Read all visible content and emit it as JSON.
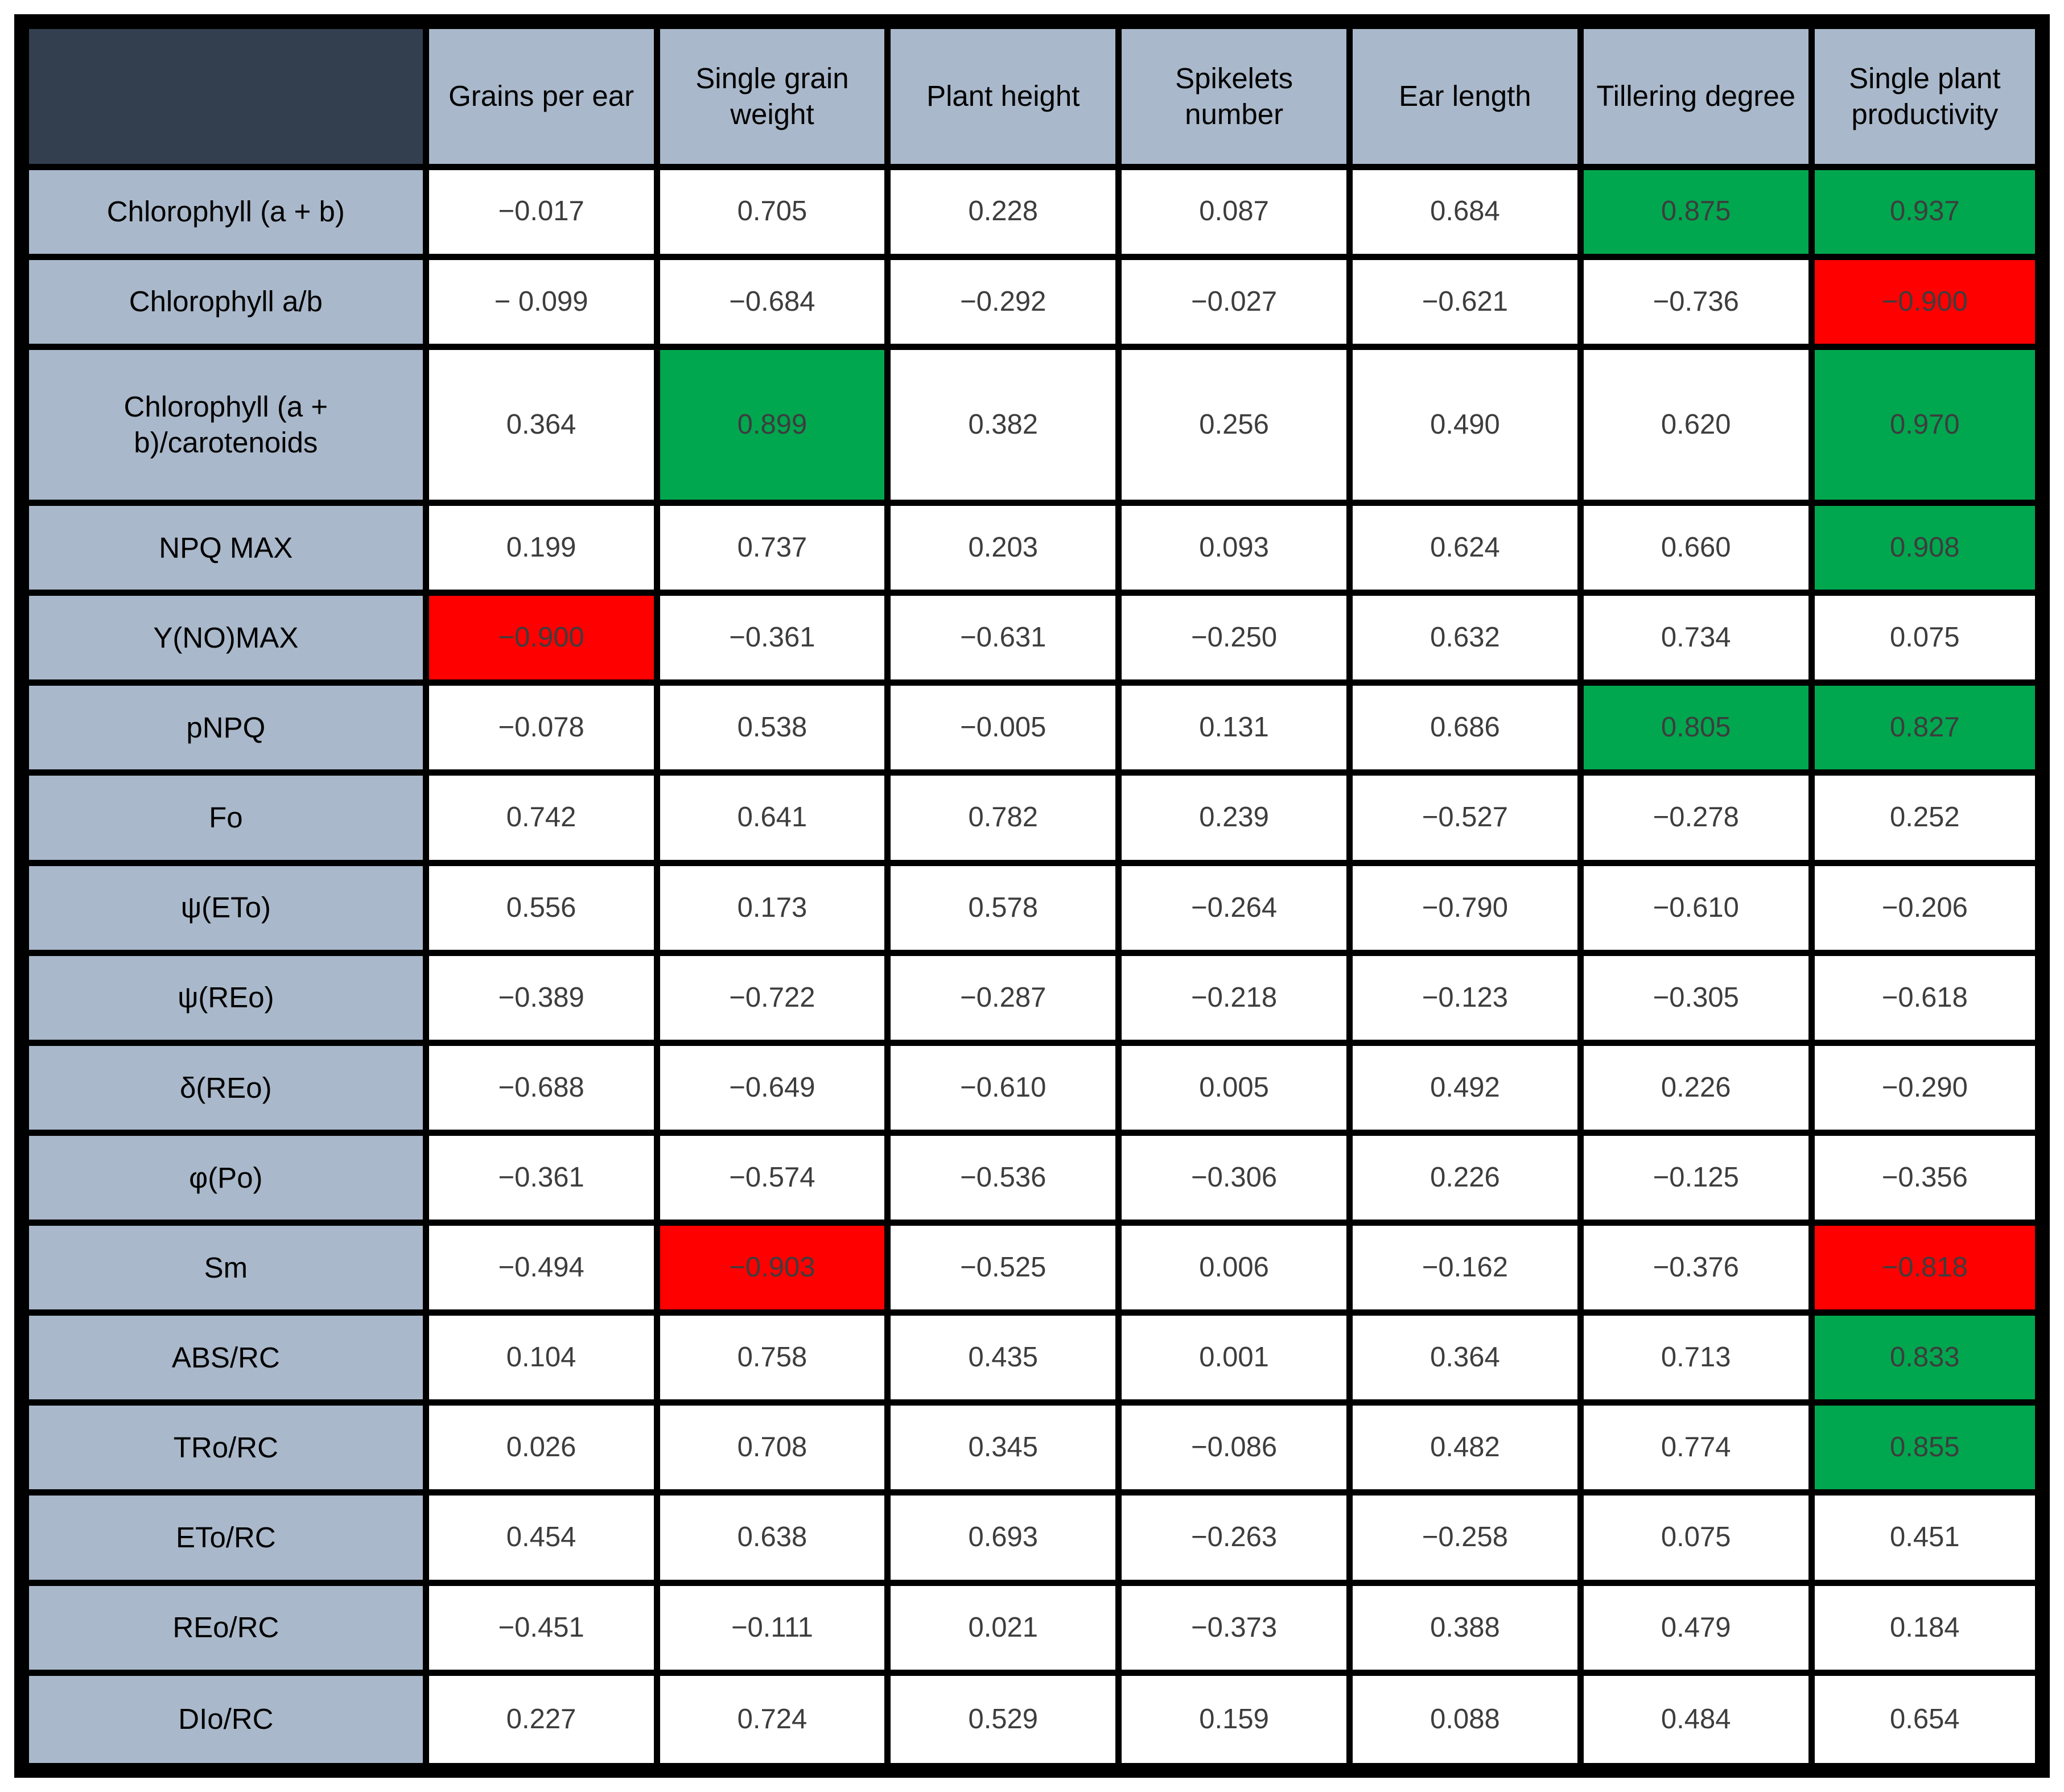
{
  "colors": {
    "header_bg": "#a9b8ca",
    "corner_bg": "#333f4f",
    "positive_highlight_green": "#00a74f",
    "negative_highlight_red": "#fe0000",
    "grid_border": "#000000",
    "value_text": "#3d3d3d",
    "label_text": "#000000",
    "cell_bg": "#ffffff"
  },
  "chart_data": {
    "type": "table",
    "title": "",
    "corner_label": "",
    "columns": [
      "Grains per ear",
      "Single grain weight",
      "Plant height",
      "Spikelets number",
      "Ear length",
      "Tillering degree",
      "Single plant productivity"
    ],
    "rows": [
      {
        "label": "Chlorophyll (a + b)",
        "values": [
          -0.017,
          0.705,
          0.228,
          0.087,
          0.684,
          0.875,
          0.937
        ],
        "display": [
          "−0.017",
          "0.705",
          "0.228",
          "0.087",
          "0.684",
          "0.875",
          "0.937"
        ],
        "highlight": [
          "",
          "",
          "",
          "",
          "",
          "green",
          "green"
        ]
      },
      {
        "label": "Chlorophyll a/b",
        "values": [
          -0.099,
          -0.684,
          -0.292,
          -0.027,
          -0.621,
          -0.736,
          -0.9
        ],
        "display": [
          "− 0.099",
          "−0.684",
          "−0.292",
          "−0.027",
          "−0.621",
          "−0.736",
          "−0.900"
        ],
        "highlight": [
          "",
          "",
          "",
          "",
          "",
          "",
          "red"
        ]
      },
      {
        "label": "Chlorophyll (a + b)/carotenoids",
        "values": [
          0.364,
          0.899,
          0.382,
          0.256,
          0.49,
          0.62,
          0.97
        ],
        "display": [
          "0.364",
          "0.899",
          "0.382",
          "0.256",
          "0.490",
          "0.620",
          "0.970"
        ],
        "highlight": [
          "",
          "green",
          "",
          "",
          "",
          "",
          "green"
        ]
      },
      {
        "label": "NPQ MAX",
        "values": [
          0.199,
          0.737,
          0.203,
          0.093,
          0.624,
          0.66,
          0.908
        ],
        "display": [
          "0.199",
          "0.737",
          "0.203",
          "0.093",
          "0.624",
          "0.660",
          "0.908"
        ],
        "highlight": [
          "",
          "",
          "",
          "",
          "",
          "",
          "green"
        ]
      },
      {
        "label": "Y(NO)MAX",
        "values": [
          -0.9,
          -0.361,
          -0.631,
          -0.25,
          0.632,
          0.734,
          0.075
        ],
        "display": [
          "−0.900",
          "−0.361",
          "−0.631",
          "−0.250",
          "0.632",
          "0.734",
          "0.075"
        ],
        "highlight": [
          "red",
          "",
          "",
          "",
          "",
          "",
          ""
        ]
      },
      {
        "label": "pNPQ",
        "values": [
          -0.078,
          0.538,
          -0.005,
          0.131,
          0.686,
          0.805,
          0.827
        ],
        "display": [
          "−0.078",
          "0.538",
          "−0.005",
          "0.131",
          "0.686",
          "0.805",
          "0.827"
        ],
        "highlight": [
          "",
          "",
          "",
          "",
          "",
          "green",
          "green"
        ]
      },
      {
        "label": "Fo",
        "values": [
          0.742,
          0.641,
          0.782,
          0.239,
          -0.527,
          -0.278,
          0.252
        ],
        "display": [
          "0.742",
          "0.641",
          "0.782",
          "0.239",
          "−0.527",
          "−0.278",
          "0.252"
        ],
        "highlight": [
          "",
          "",
          "",
          "",
          "",
          "",
          ""
        ]
      },
      {
        "label": "ψ(ETo)",
        "values": [
          0.556,
          0.173,
          0.578,
          -0.264,
          -0.79,
          -0.61,
          -0.206
        ],
        "display": [
          "0.556",
          "0.173",
          "0.578",
          "−0.264",
          "−0.790",
          "−0.610",
          "−0.206"
        ],
        "highlight": [
          "",
          "",
          "",
          "",
          "",
          "",
          ""
        ]
      },
      {
        "label": "ψ(REo)",
        "values": [
          -0.389,
          -0.722,
          -0.287,
          -0.218,
          -0.123,
          -0.305,
          -0.618
        ],
        "display": [
          "−0.389",
          "−0.722",
          "−0.287",
          "−0.218",
          "−0.123",
          "−0.305",
          "−0.618"
        ],
        "highlight": [
          "",
          "",
          "",
          "",
          "",
          "",
          ""
        ]
      },
      {
        "label": "δ(REo)",
        "values": [
          -0.688,
          -0.649,
          -0.61,
          0.005,
          0.492,
          0.226,
          -0.29
        ],
        "display": [
          "−0.688",
          "−0.649",
          "−0.610",
          "0.005",
          "0.492",
          "0.226",
          "−0.290"
        ],
        "highlight": [
          "",
          "",
          "",
          "",
          "",
          "",
          ""
        ]
      },
      {
        "label": "φ(Po)",
        "values": [
          -0.361,
          -0.574,
          -0.536,
          -0.306,
          0.226,
          -0.125,
          -0.356
        ],
        "display": [
          "−0.361",
          "−0.574",
          "−0.536",
          "−0.306",
          "0.226",
          "−0.125",
          "−0.356"
        ],
        "highlight": [
          "",
          "",
          "",
          "",
          "",
          "",
          ""
        ]
      },
      {
        "label": "Sm",
        "values": [
          -0.494,
          -0.903,
          -0.525,
          0.006,
          -0.162,
          -0.376,
          -0.818
        ],
        "display": [
          "−0.494",
          "−0.903",
          "−0.525",
          "0.006",
          "−0.162",
          "−0.376",
          "−0.818"
        ],
        "highlight": [
          "",
          "red",
          "",
          "",
          "",
          "",
          "red"
        ]
      },
      {
        "label": "ABS/RC",
        "values": [
          0.104,
          0.758,
          0.435,
          0.001,
          0.364,
          0.713,
          0.833
        ],
        "display": [
          "0.104",
          "0.758",
          "0.435",
          "0.001",
          "0.364",
          "0.713",
          "0.833"
        ],
        "highlight": [
          "",
          "",
          "",
          "",
          "",
          "",
          "green"
        ]
      },
      {
        "label": "TRo/RC",
        "values": [
          0.026,
          0.708,
          0.345,
          -0.086,
          0.482,
          0.774,
          0.855
        ],
        "display": [
          "0.026",
          "0.708",
          "0.345",
          "−0.086",
          "0.482",
          "0.774",
          "0.855"
        ],
        "highlight": [
          "",
          "",
          "",
          "",
          "",
          "",
          "green"
        ]
      },
      {
        "label": "ETo/RC",
        "values": [
          0.454,
          0.638,
          0.693,
          -0.263,
          -0.258,
          0.075,
          0.451
        ],
        "display": [
          "0.454",
          "0.638",
          "0.693",
          "−0.263",
          "−0.258",
          "0.075",
          "0.451"
        ],
        "highlight": [
          "",
          "",
          "",
          "",
          "",
          "",
          ""
        ]
      },
      {
        "label": "REo/RC",
        "values": [
          -0.451,
          -0.111,
          0.021,
          -0.373,
          0.388,
          0.479,
          0.184
        ],
        "display": [
          "−0.451",
          "−0.111",
          "0.021",
          "−0.373",
          "0.388",
          "0.479",
          "0.184"
        ],
        "highlight": [
          "",
          "",
          "",
          "",
          "",
          "",
          ""
        ]
      },
      {
        "label": "DIo/RC",
        "values": [
          0.227,
          0.724,
          0.529,
          0.159,
          0.088,
          0.484,
          0.654
        ],
        "display": [
          "0.227",
          "0.724",
          "0.529",
          "0.159",
          "0.088",
          "0.484",
          "0.654"
        ],
        "highlight": [
          "",
          "",
          "",
          "",
          "",
          "",
          ""
        ]
      }
    ]
  }
}
